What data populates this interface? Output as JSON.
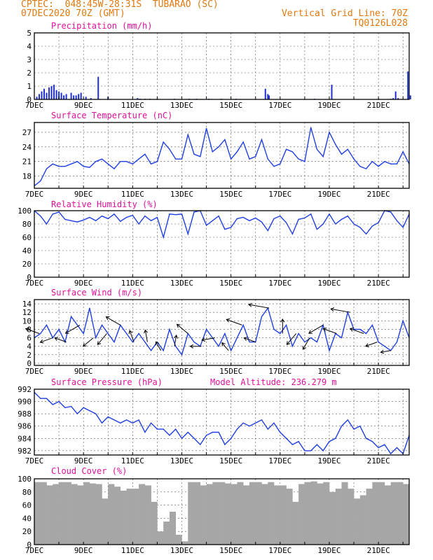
{
  "header": {
    "line1": "CPTEC:  048:45W-28:31S  TUBARAO (SC)",
    "line2": "07DEC2020 70Z (GMT)",
    "grid_note": "Vertical Grid Line: 70Z",
    "code": "TQ0126L028",
    "color": "#e07a10"
  },
  "colors": {
    "title": "#e0109a",
    "line": "#1f3fe0",
    "bar": "#2030d0",
    "cloud": "#a6a6a6",
    "arrow": "#000000"
  },
  "x_ticks": [
    "7DEC",
    "9DEC",
    "11DEC",
    "13DEC",
    "15DEC",
    "17DEC",
    "19DEC",
    "21DEC"
  ],
  "chart_data": [
    {
      "type": "bar",
      "title": "Precipitation (mm/h)",
      "ylim": [
        0,
        5
      ],
      "y_ticks": [
        "0",
        "1",
        "2",
        "3",
        "4",
        "5"
      ],
      "x": [
        0.1,
        0.2,
        0.3,
        0.4,
        0.5,
        0.6,
        0.7,
        0.8,
        0.9,
        1.0,
        1.1,
        1.2,
        1.3,
        1.5,
        1.6,
        1.7,
        1.8,
        1.9,
        2.1,
        2.3,
        2.6,
        3.0,
        4.2,
        4.3,
        4.5,
        4.7,
        5.0,
        5.7,
        6.3,
        6.6,
        7.1,
        7.6,
        8.2,
        9.4,
        9.5,
        9.55,
        11.4,
        12.1,
        14.0,
        14.5,
        14.6,
        14.7,
        14.8,
        15.2,
        15.3
      ],
      "values": [
        0.2,
        0.4,
        0.6,
        0.8,
        0.5,
        0.9,
        1.0,
        1.1,
        0.7,
        0.6,
        0.5,
        0.3,
        0.4,
        0.5,
        0.3,
        0.3,
        0.4,
        0.5,
        0.2,
        0.1,
        1.7,
        0.2,
        0.1,
        0.05,
        0.05,
        0.05,
        0.05,
        0.05,
        0.05,
        0.05,
        0.05,
        0.05,
        0.05,
        0.8,
        0.4,
        0.3,
        0.05,
        1.1,
        0.05,
        0.05,
        0.1,
        0.6,
        0.1,
        2.1,
        0.3
      ]
    },
    {
      "type": "line",
      "title": "Surface Temperature (nC)",
      "ylim": [
        15.5,
        29
      ],
      "y_ticks": [
        "18",
        "21",
        "24",
        "27"
      ],
      "x": [
        0,
        0.25,
        0.5,
        0.75,
        1,
        1.25,
        1.5,
        1.75,
        2,
        2.25,
        2.5,
        2.75,
        3,
        3.25,
        3.5,
        3.75,
        4,
        4.25,
        4.5,
        4.75,
        5,
        5.25,
        5.5,
        5.75,
        6,
        6.25,
        6.5,
        6.75,
        7,
        7.25,
        7.5,
        7.75,
        8,
        8.25,
        8.5,
        8.75,
        9,
        9.25,
        9.5,
        9.75,
        10,
        10.25,
        10.5,
        10.75,
        11,
        11.25,
        11.5,
        11.75,
        12,
        12.25,
        12.5,
        12.75,
        13,
        13.25,
        13.5,
        13.75,
        14,
        14.25,
        14.5,
        14.75,
        15,
        15.25
      ],
      "values": [
        16,
        17,
        19.5,
        20.5,
        20,
        20,
        20.5,
        21,
        20,
        19.8,
        21,
        21.5,
        20.5,
        19.5,
        21,
        21,
        20.5,
        21.5,
        22.5,
        20.5,
        21,
        25,
        23.5,
        21.5,
        21.5,
        26.5,
        22.5,
        22,
        27.8,
        23,
        24,
        25.5,
        21.5,
        23,
        25,
        21.5,
        22,
        25.5,
        21.5,
        20,
        20.5,
        23.5,
        23,
        21.5,
        21,
        28,
        23.5,
        22,
        27,
        24.5,
        22.5,
        23.5,
        21.5,
        20,
        19.5,
        21,
        20,
        21,
        20.5,
        20.5,
        23,
        20.5
      ]
    },
    {
      "type": "line",
      "title": "Relative Humidity (%)",
      "ylim": [
        0,
        100
      ],
      "y_ticks": [
        "0",
        "20",
        "40",
        "60",
        "80",
        "100"
      ],
      "x": [
        0,
        0.25,
        0.5,
        0.75,
        1,
        1.25,
        1.5,
        1.75,
        2,
        2.25,
        2.5,
        2.75,
        3,
        3.25,
        3.5,
        3.75,
        4,
        4.25,
        4.5,
        4.75,
        5,
        5.25,
        5.5,
        5.75,
        6,
        6.25,
        6.5,
        6.75,
        7,
        7.25,
        7.5,
        7.75,
        8,
        8.25,
        8.5,
        8.75,
        9,
        9.25,
        9.5,
        9.75,
        10,
        10.25,
        10.5,
        10.75,
        11,
        11.25,
        11.5,
        11.75,
        12,
        12.25,
        12.5,
        12.75,
        13,
        13.25,
        13.5,
        13.75,
        14,
        14.25,
        14.5,
        14.75,
        15,
        15.25
      ],
      "values": [
        100,
        92,
        80,
        95,
        98,
        87,
        85,
        83,
        86,
        90,
        85,
        92,
        88,
        95,
        84,
        90,
        93,
        80,
        92,
        85,
        90,
        60,
        95,
        94,
        95,
        65,
        98,
        100,
        78,
        85,
        92,
        72,
        75,
        88,
        90,
        85,
        89,
        83,
        70,
        88,
        92,
        82,
        65,
        87,
        89,
        95,
        72,
        80,
        95,
        80,
        87,
        92,
        80,
        75,
        65,
        77,
        82,
        100,
        98,
        85,
        75,
        95
      ]
    },
    {
      "type": "line",
      "title": "Surface Wind (m/s)",
      "ylim": [
        -0.5,
        15
      ],
      "y_ticks": [
        "0",
        "2",
        "4",
        "6",
        "8",
        "10",
        "12",
        "14"
      ],
      "x": [
        0,
        0.25,
        0.5,
        0.75,
        1,
        1.25,
        1.5,
        1.75,
        2,
        2.25,
        2.5,
        2.75,
        3,
        3.25,
        3.5,
        3.75,
        4,
        4.25,
        4.5,
        4.75,
        5,
        5.25,
        5.5,
        5.75,
        6,
        6.25,
        6.5,
        6.75,
        7,
        7.25,
        7.5,
        7.75,
        8,
        8.25,
        8.5,
        8.75,
        9,
        9.25,
        9.5,
        9.75,
        10,
        10.25,
        10.5,
        10.75,
        11,
        11.25,
        11.5,
        11.75,
        12,
        12.25,
        12.5,
        12.75,
        13,
        13.25,
        13.5,
        13.75,
        14,
        14.25,
        14.5,
        14.75,
        15,
        15.25
      ],
      "values": [
        6,
        7,
        9,
        6,
        8,
        5,
        11,
        9,
        7,
        13,
        6,
        9,
        7,
        5,
        9,
        7,
        5,
        7,
        5,
        3,
        5,
        3,
        8,
        4,
        2,
        7,
        5,
        4,
        8,
        6,
        4,
        7,
        3,
        6,
        9,
        5,
        5,
        11,
        13,
        8,
        7,
        9,
        4,
        7,
        5,
        6,
        5,
        9,
        3,
        7,
        6,
        12,
        8,
        8,
        7,
        9,
        5,
        4,
        3,
        5,
        10,
        6
      ]
    },
    {
      "type": "line",
      "title": "Surface Pressure (hPa)",
      "annotation": "Model Altitude: 236.279 m",
      "ylim": [
        981.3,
        992
      ],
      "y_ticks": [
        "982",
        "984",
        "986",
        "988",
        "990",
        "992"
      ],
      "x": [
        0,
        0.25,
        0.5,
        0.75,
        1,
        1.25,
        1.5,
        1.75,
        2,
        2.25,
        2.5,
        2.75,
        3,
        3.25,
        3.5,
        3.75,
        4,
        4.25,
        4.5,
        4.75,
        5,
        5.25,
        5.5,
        5.75,
        6,
        6.25,
        6.5,
        6.75,
        7,
        7.25,
        7.5,
        7.75,
        8,
        8.25,
        8.5,
        8.75,
        9,
        9.25,
        9.5,
        9.75,
        10,
        10.25,
        10.5,
        10.75,
        11,
        11.25,
        11.5,
        11.75,
        12,
        12.25,
        12.5,
        12.75,
        13,
        13.25,
        13.5,
        13.75,
        14,
        14.25,
        14.5,
        14.75,
        15,
        15.25
      ],
      "values": [
        991.5,
        990.5,
        990.5,
        989.5,
        990,
        989,
        989.2,
        988,
        989,
        988.5,
        988,
        986.5,
        987.5,
        987,
        986.5,
        987,
        986.5,
        987,
        985,
        986.5,
        985.5,
        985.5,
        984.5,
        985.5,
        984,
        985,
        984,
        983,
        984.5,
        985,
        985,
        983,
        984,
        985.5,
        986.5,
        986,
        986.5,
        987,
        985.5,
        986.5,
        985,
        984,
        983,
        983.5,
        982,
        982,
        983,
        982,
        983.5,
        984,
        986,
        987,
        985.5,
        986,
        984,
        983.5,
        982.5,
        983,
        981.5,
        982.5,
        981.5,
        984.5
      ]
    },
    {
      "type": "area",
      "title": "Cloud Cover (%)",
      "ylim": [
        0,
        100
      ],
      "y_ticks": [
        "0",
        "20",
        "40",
        "60",
        "80",
        "100"
      ],
      "x": [
        0,
        0.25,
        0.5,
        0.75,
        1,
        1.25,
        1.5,
        1.75,
        2,
        2.25,
        2.5,
        2.75,
        3,
        3.25,
        3.5,
        3.75,
        4,
        4.25,
        4.5,
        4.75,
        5,
        5.25,
        5.5,
        5.75,
        6,
        6.25,
        6.5,
        6.75,
        7,
        7.25,
        7.5,
        7.75,
        8,
        8.25,
        8.5,
        8.75,
        9,
        9.25,
        9.5,
        9.75,
        10,
        10.25,
        10.5,
        10.75,
        11,
        11.25,
        11.5,
        11.75,
        12,
        12.25,
        12.5,
        12.75,
        13,
        13.25,
        13.5,
        13.75,
        14,
        14.25,
        14.5,
        14.75,
        15,
        15.25
      ],
      "values": [
        95,
        95,
        90,
        92,
        95,
        95,
        92,
        90,
        95,
        93,
        92,
        70,
        92,
        88,
        82,
        85,
        85,
        92,
        90,
        65,
        20,
        35,
        50,
        15,
        5,
        95,
        95,
        90,
        92,
        95,
        95,
        93,
        92,
        95,
        90,
        95,
        95,
        92,
        95,
        90,
        90,
        85,
        65,
        92,
        95,
        96,
        93,
        95,
        80,
        85,
        95,
        85,
        70,
        75,
        85,
        95,
        95,
        90,
        95,
        95,
        92,
        95
      ]
    }
  ]
}
